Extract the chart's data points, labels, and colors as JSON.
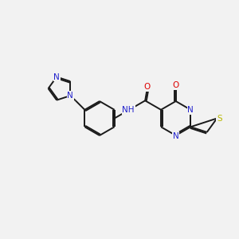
{
  "bg_color": "#f2f2f2",
  "bond_color": "#1a1a1a",
  "bond_width": 1.4,
  "dbo": 0.055,
  "atom_colors": {
    "N": "#2020cc",
    "O": "#dd0000",
    "S": "#b8b800",
    "H": "#555555"
  },
  "fs": 7.5,
  "fig_w": 3.0,
  "fig_h": 3.0,
  "xlim": [
    0,
    10
  ],
  "ylim": [
    0,
    10
  ]
}
